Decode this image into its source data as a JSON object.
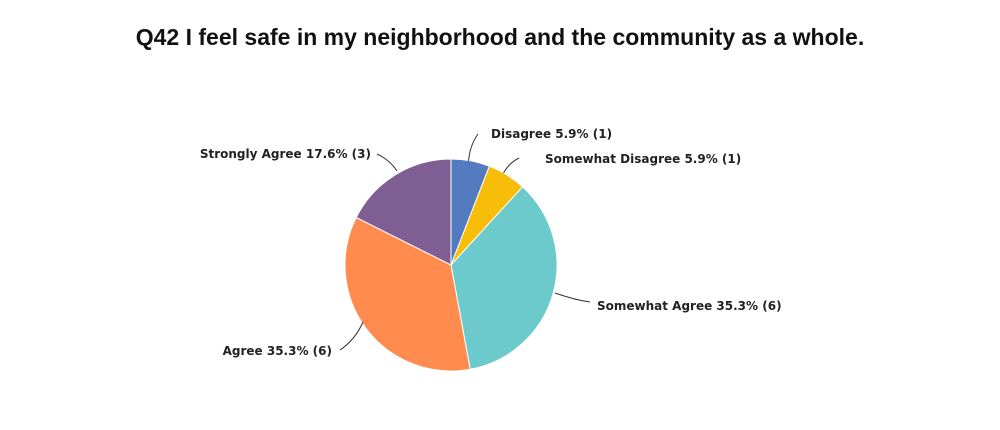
{
  "chart_data": {
    "type": "pie",
    "title": "Q42 I feel safe in my neighborhood and the community as a whole.",
    "slices": [
      {
        "label": "Disagree",
        "percent": 5.9,
        "count": 1,
        "display": "Disagree 5.9% (1)",
        "color": "#537bbf"
      },
      {
        "label": "Somewhat Disagree",
        "percent": 5.9,
        "count": 1,
        "display": "Somewhat Disagree 5.9% (1)",
        "color": "#f8bd08"
      },
      {
        "label": "Somewhat Agree",
        "percent": 35.3,
        "count": 6,
        "display": "Somewhat Agree 35.3% (6)",
        "color": "#6ccacd"
      },
      {
        "label": "Agree",
        "percent": 35.3,
        "count": 6,
        "display": "Agree 35.3% (6)",
        "color": "#ff8b4f"
      },
      {
        "label": "Strongly Agree",
        "percent": 17.6,
        "count": 3,
        "display": "Strongly Agree 17.6% (3)",
        "color": "#7f5f93"
      }
    ]
  }
}
